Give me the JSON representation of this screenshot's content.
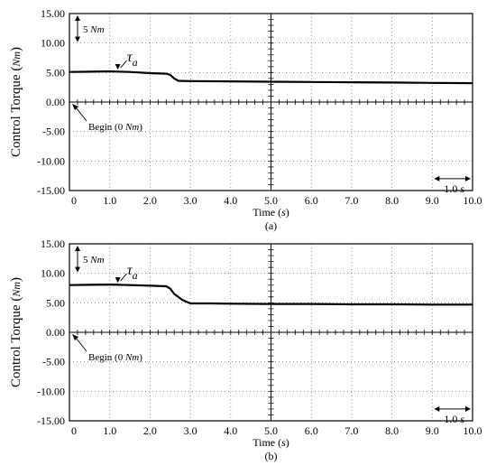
{
  "chart_data": [
    {
      "type": "line",
      "caption": "(a)",
      "xlabel": "Time",
      "xlabel_unit": "s",
      "ylabel": "Control Torque",
      "ylabel_unit": "Nm",
      "xlim": [
        0,
        10
      ],
      "ylim": [
        -15,
        15
      ],
      "x_ticks": [
        "0",
        "1.0",
        "2.0",
        "3.0",
        "4.0",
        "5.0",
        "6.0",
        "7.0",
        "8.0",
        "9.0",
        "10.0"
      ],
      "y_ticks": [
        "15.00",
        "10.00",
        "5.00",
        "0.00",
        "-5.00",
        "-10.00",
        "-15.00"
      ],
      "grid": true,
      "series": [
        {
          "name": "τ",
          "name_sub": "a",
          "x": [
            0,
            0.5,
            1.0,
            1.5,
            2.0,
            2.4,
            2.5,
            2.6,
            2.7,
            3.0,
            4.0,
            5.0,
            6.0,
            7.0,
            8.0,
            9.0,
            10.0
          ],
          "y": [
            5.1,
            5.15,
            5.2,
            5.1,
            4.9,
            4.8,
            4.6,
            4.0,
            3.6,
            3.55,
            3.5,
            3.45,
            3.4,
            3.35,
            3.3,
            3.25,
            3.2
          ]
        }
      ],
      "annotations": {
        "scale_bar": {
          "value": "5",
          "unit": "Nm"
        },
        "begin": {
          "text": "Begin (0",
          "unit": "Nm",
          "close": ")"
        },
        "time_bar": {
          "value": "1.0",
          "unit": "s"
        }
      }
    },
    {
      "type": "line",
      "caption": "(b)",
      "xlabel": "Time",
      "xlabel_unit": "s",
      "ylabel": "Control Torque",
      "ylabel_unit": "Nm",
      "xlim": [
        0,
        10
      ],
      "ylim": [
        -15,
        15
      ],
      "x_ticks": [
        "0",
        "1.0",
        "2.0",
        "3.0",
        "4.0",
        "5.0",
        "6.0",
        "7.0",
        "8.0",
        "9.0",
        "10.0"
      ],
      "y_ticks": [
        "15.00",
        "10.00",
        "5.00",
        "0.00",
        "-5.00",
        "-10.00",
        "-15.00"
      ],
      "grid": true,
      "series": [
        {
          "name": "τ",
          "name_sub": "a",
          "x": [
            0,
            0.5,
            1.0,
            1.5,
            2.0,
            2.4,
            2.5,
            2.6,
            2.8,
            3.0,
            3.5,
            4.0,
            5.0,
            6.0,
            7.0,
            8.0,
            9.0,
            10.0
          ],
          "y": [
            8.0,
            8.05,
            8.1,
            8.0,
            7.9,
            7.8,
            7.4,
            6.5,
            5.5,
            4.9,
            4.9,
            4.85,
            4.8,
            4.8,
            4.75,
            4.75,
            4.7,
            4.7
          ]
        }
      ],
      "annotations": {
        "scale_bar": {
          "value": "5",
          "unit": "Nm"
        },
        "begin": {
          "text": "Begin (0",
          "unit": "Nm",
          "close": ")"
        },
        "time_bar": {
          "value": "1.0",
          "unit": "s"
        }
      }
    }
  ]
}
